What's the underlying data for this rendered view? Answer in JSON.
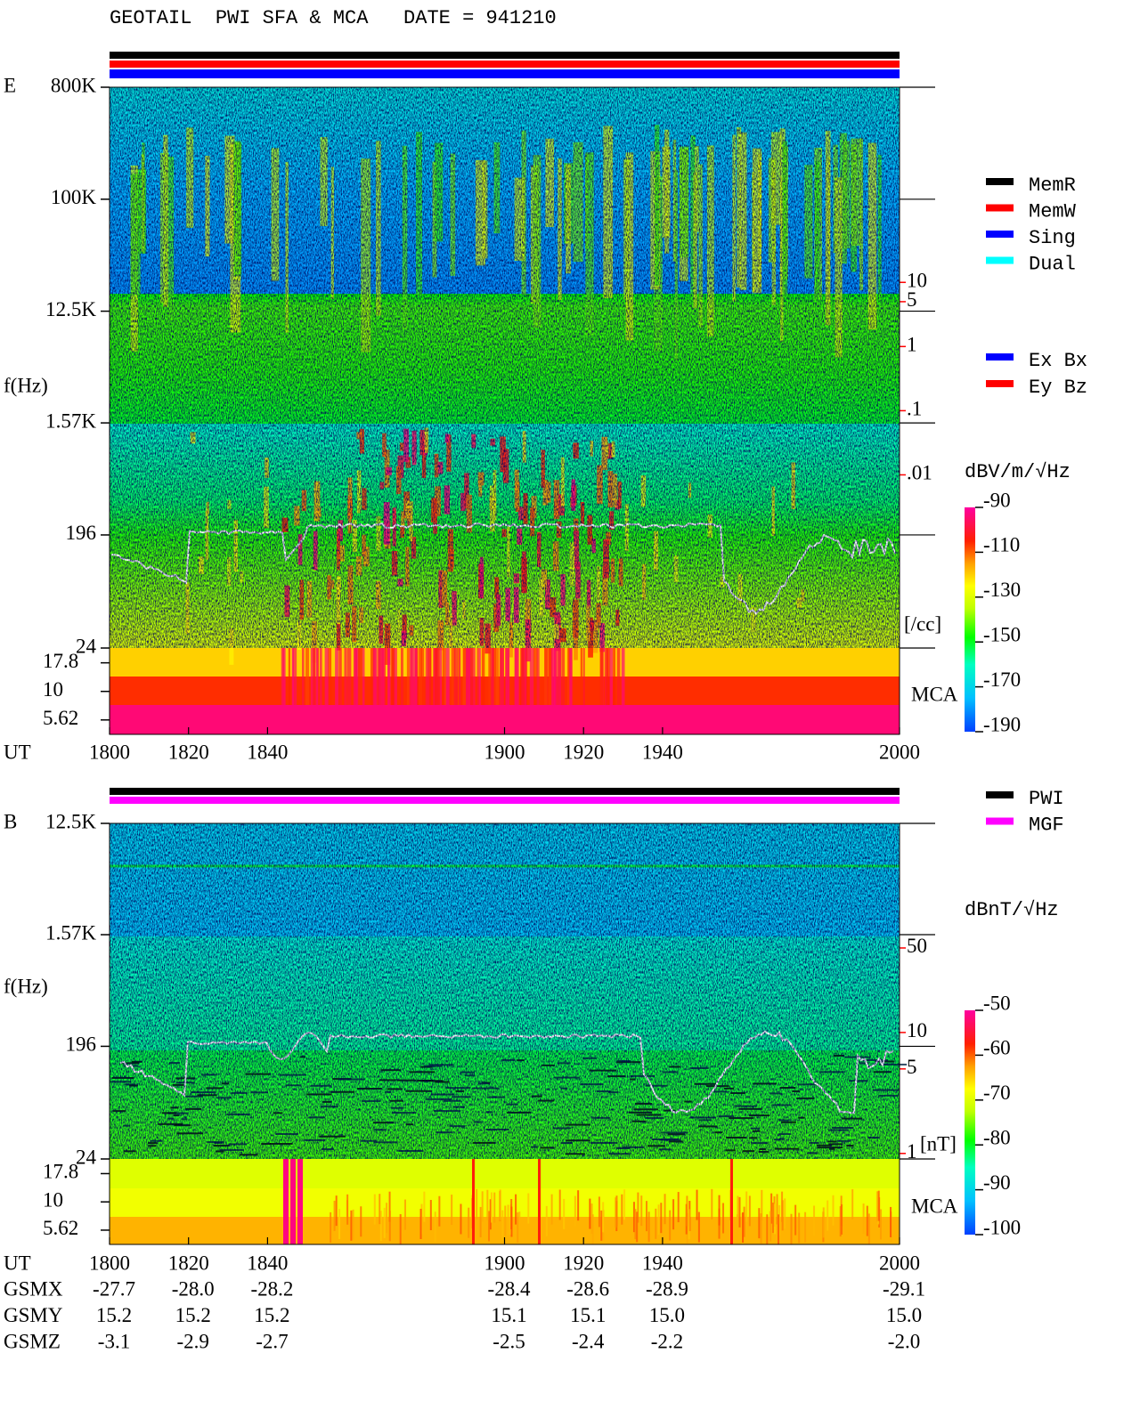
{
  "chart_data": [
    {
      "type": "spectrogram",
      "title": "GEOTAIL  PWI SFA & MCA   DATE = 941210",
      "panel_label": "E",
      "y_label": "f(Hz)",
      "x_label": "UT",
      "xlim": [
        1800,
        2000
      ],
      "xticks": [
        1800,
        1820,
        1840,
        1900,
        1920,
        1940,
        2000
      ],
      "log_y": true,
      "ylim": [
        24,
        800000
      ],
      "yticks": [
        {
          "value": 800000,
          "label": "800K"
        },
        {
          "value": 100000,
          "label": "100K"
        },
        {
          "value": 12500,
          "label": "12.5K"
        },
        {
          "value": 1570,
          "label": "1.57K"
        },
        196,
        24
      ],
      "mca_label": "MCA",
      "mca_ylim": [
        4.2,
        24
      ],
      "mca_yticks": [
        17.8,
        10,
        5.62
      ],
      "y2lim": [
        2e-05,
        11000
      ],
      "y2ticks": [
        10,
        5,
        1,
        {
          "value": 0.1,
          "label": ".1"
        },
        {
          "value": 0.01,
          "label": ".01"
        }
      ],
      "y2_label": "[/cc]",
      "y2_color": "#ff0000",
      "legend": [
        {
          "name": "MemR",
          "color": "#000000"
        },
        {
          "name": "MemW",
          "color": "#ff0000"
        },
        {
          "name": "Sing",
          "color": "#0000ff"
        },
        {
          "name": "Dual",
          "color": "#00ffff"
        }
      ],
      "legend2": [
        {
          "name": "Ex Bx",
          "color": "#0000ff"
        },
        {
          "name": "Ey Bz",
          "color": "#ff0000"
        }
      ],
      "colorbar_label": "dBV/m/√Hz",
      "clim": [
        -190,
        -90
      ],
      "cticks": [
        -90,
        -110,
        -130,
        -150,
        -170,
        -190
      ]
    },
    {
      "type": "spectrogram",
      "panel_label": "B",
      "y_label": "f(Hz)",
      "x_label": "UT",
      "xlim": [
        1800,
        2000
      ],
      "xticks": [
        1800,
        1820,
        1840,
        1900,
        1920,
        1940,
        2000
      ],
      "log_y": true,
      "ylim": [
        24,
        12500
      ],
      "yticks": [
        {
          "value": 12500,
          "label": "12.5K"
        },
        {
          "value": 1570,
          "label": "1.57K"
        },
        196,
        24
      ],
      "mca_label": "MCA",
      "mca_ylim": [
        4.2,
        24
      ],
      "mca_yticks": [
        17.8,
        10,
        5.62
      ],
      "y2lim": [
        0.9,
        536
      ],
      "y2ticks": [
        50,
        10,
        5,
        1
      ],
      "y2_label": "[nT]",
      "y2_color": "#ff0000",
      "legend": [
        {
          "name": "PWI",
          "color": "#000000"
        },
        {
          "name": "MGF",
          "color": "#ff00ff"
        }
      ],
      "colorbar_label": "dBnT/√Hz",
      "clim": [
        -100,
        -50
      ],
      "cticks": [
        -50,
        -60,
        -70,
        -80,
        -90,
        -100
      ]
    }
  ],
  "orbit": {
    "rows": [
      {
        "label": "GSMX",
        "values": [
          "-27.7",
          "-28.0",
          "-28.2",
          "-28.4",
          "-28.6",
          "-28.9",
          "-29.1"
        ]
      },
      {
        "label": "GSMY",
        "values": [
          "15.2",
          "15.2",
          "15.2",
          "15.1",
          "15.1",
          "15.0",
          "15.0"
        ]
      },
      {
        "label": "GSMZ",
        "values": [
          "-3.1",
          "-2.9",
          "-2.7",
          "-2.5",
          "-2.4",
          "-2.2",
          "-2.0"
        ]
      }
    ]
  }
}
